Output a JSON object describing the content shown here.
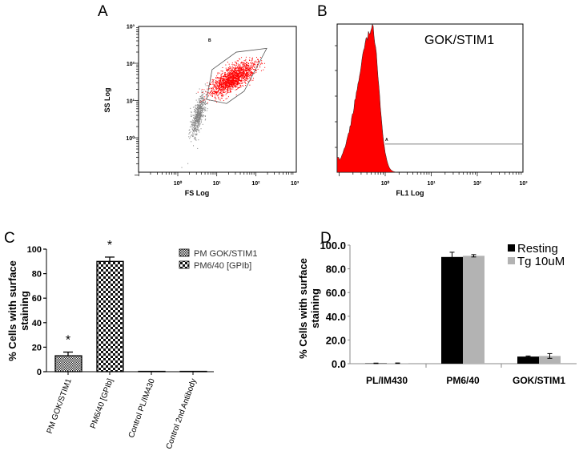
{
  "panels": {
    "a": "A",
    "b": "B",
    "c": "C",
    "d": "D"
  },
  "chart_data": [
    {
      "type": "scatter",
      "panel": "A",
      "xlabel": "FS Log",
      "ylabel": "SS Log",
      "xscale": "log",
      "yscale": "log",
      "xlim_log10": [
        -1,
        3
      ],
      "ylim_log10": [
        -1,
        3
      ],
      "xtick_labels": [
        "10⁰",
        "10¹",
        "10²",
        "10³"
      ],
      "ytick_labels": [
        "10⁰",
        "10¹",
        "10²",
        "10³"
      ],
      "gate_label": "B",
      "gate_polygon_log10": [
        [
          0.88,
          1.83
        ],
        [
          1.5,
          2.3
        ],
        [
          2.28,
          2.4
        ],
        [
          1.7,
          1.25
        ],
        [
          1.25,
          0.92
        ],
        [
          0.74,
          1.03
        ]
      ],
      "populations": [
        {
          "name": "gated",
          "color": "#ff0000",
          "center_log10": [
            1.4,
            1.6
          ],
          "spread_log10": [
            0.28,
            0.22
          ],
          "count": 1600
        },
        {
          "name": "ungated",
          "color": "#808080",
          "center_log10": [
            0.52,
            0.62
          ],
          "spread_log10": [
            0.1,
            0.3
          ],
          "count": 600
        }
      ]
    },
    {
      "type": "area",
      "panel": "B",
      "title": "GOK/STIM1",
      "xlabel": "FL1 Log",
      "xscale": "log",
      "xlim_log10": [
        -1,
        3
      ],
      "xtick_labels": [
        "10⁰",
        "10¹",
        "10²",
        "10³"
      ],
      "histogram": {
        "peak_log10": -0.28,
        "left_width": 0.45,
        "right_width": 0.2,
        "color": "#ff0000"
      },
      "marker": {
        "label": "A",
        "range_log10": [
          0,
          3
        ],
        "level_fraction": 0.19
      }
    },
    {
      "type": "bar",
      "panel": "C",
      "ylabel": "% Cells with surface staining",
      "ylim": [
        0,
        100
      ],
      "yticks": [
        0,
        20,
        40,
        60,
        80,
        100
      ],
      "categories": [
        "PM GOK/STIM1",
        "PM6/40 [GPIb]",
        "Control PL/IM430",
        "Control 2nd Antibody"
      ],
      "values": [
        13,
        90,
        0.3,
        0.3
      ],
      "errors": [
        3,
        3.5,
        0,
        0
      ],
      "significance": [
        "*",
        "*",
        "",
        ""
      ],
      "legend": [
        "PM GOK/STIM1",
        "PM6/40 [GPIb]"
      ]
    },
    {
      "type": "bar",
      "panel": "D",
      "ylabel": "% Cells with surface staining",
      "ylim": [
        0,
        100
      ],
      "yticks": [
        "0.0",
        "20.0",
        "40.0",
        "60.0",
        "80.0",
        "100.0"
      ],
      "categories": [
        "PL/IM430",
        "PM6/40",
        "GOK/STIM1"
      ],
      "series": [
        {
          "name": "Resting",
          "color": "#000000",
          "values": [
            0.3,
            90,
            6
          ],
          "errors": [
            0.2,
            4,
            0.5
          ]
        },
        {
          "name": "Tg 10uM",
          "color": "#b3b3b3",
          "values": [
            0.4,
            91,
            6.5
          ],
          "errors": [
            0.2,
            1,
            2
          ]
        }
      ],
      "legend_position": "top-right"
    }
  ]
}
